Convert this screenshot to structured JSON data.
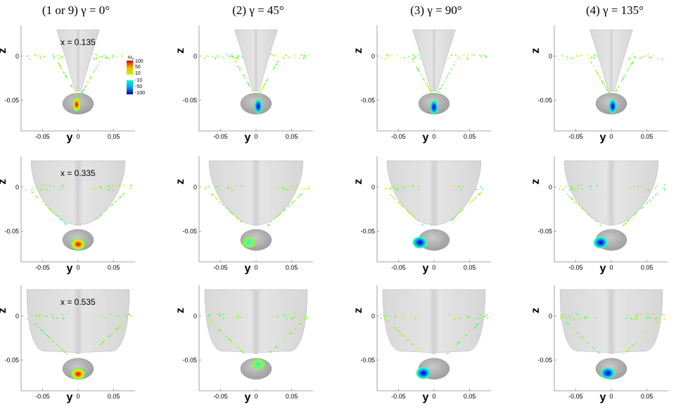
{
  "columns": [
    {
      "title": "(1 or 9) γ = 0°",
      "gamma": 0
    },
    {
      "title": "(2) γ = 45°",
      "gamma": 45
    },
    {
      "title": "(3) γ = 90°",
      "gamma": 90
    },
    {
      "title": "(4) γ = 135°",
      "gamma": 135
    }
  ],
  "rows": [
    {
      "station": "x = 0.135",
      "x": 0.135
    },
    {
      "station": "x = 0.335",
      "x": 0.335
    },
    {
      "station": "x = 0.535",
      "x": 0.535
    }
  ],
  "axes": {
    "xlabel": "y",
    "ylabel": "z",
    "xticks": [
      "-0.05",
      "0",
      "0.05"
    ],
    "yticks": [
      "0",
      "-0.05"
    ]
  },
  "legend": {
    "title": "ω",
    "subscript": "x",
    "levels": [
      "100",
      "50",
      "10",
      "-10",
      "-50",
      "-100"
    ]
  },
  "chart_data": {
    "type": "contour",
    "xlim": [
      -0.08,
      0.08
    ],
    "ylim": [
      -0.085,
      0.035
    ],
    "variable": "ωx",
    "cores": [
      {
        "row": 0,
        "col": 0,
        "y": -0.002,
        "z": -0.055,
        "sign": 1
      },
      {
        "row": 0,
        "col": 1,
        "y": 0.003,
        "z": -0.057,
        "sign": -1
      },
      {
        "row": 0,
        "col": 2,
        "y": 0.0,
        "z": -0.058,
        "sign": -1
      },
      {
        "row": 0,
        "col": 3,
        "y": 0.002,
        "z": -0.057,
        "sign": -1
      },
      {
        "row": 1,
        "col": 0,
        "y": 0.0,
        "z": -0.065,
        "sign": 1
      },
      {
        "row": 1,
        "col": 1,
        "y": -0.01,
        "z": -0.063,
        "sign": 0
      },
      {
        "row": 1,
        "col": 2,
        "y": -0.02,
        "z": -0.063,
        "sign": -1
      },
      {
        "row": 1,
        "col": 3,
        "y": -0.015,
        "z": -0.063,
        "sign": -1
      },
      {
        "row": 2,
        "col": 0,
        "y": 0.0,
        "z": -0.066,
        "sign": 1
      },
      {
        "row": 2,
        "col": 1,
        "y": 0.003,
        "z": -0.055,
        "sign": 0
      },
      {
        "row": 2,
        "col": 2,
        "y": -0.015,
        "z": -0.065,
        "sign": -1
      },
      {
        "row": 2,
        "col": 3,
        "y": -0.005,
        "z": -0.065,
        "sign": -1
      }
    ]
  }
}
